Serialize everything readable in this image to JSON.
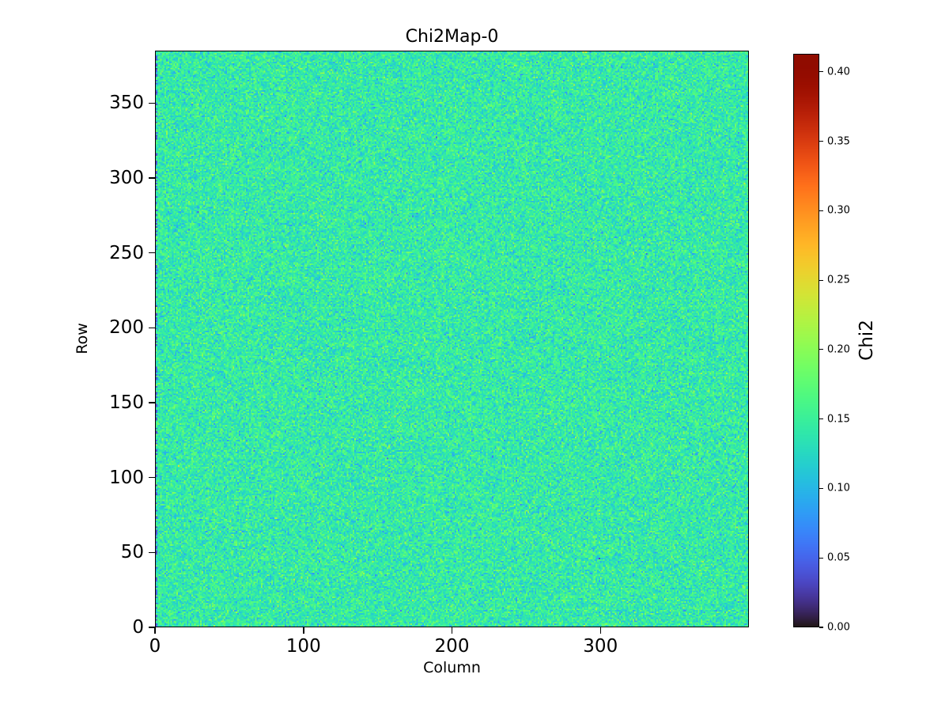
{
  "chart_data": {
    "type": "heatmap",
    "title": "Chi2Map-0",
    "xlabel": "Column",
    "ylabel": "Row",
    "colorbar_label": "Chi2",
    "xlim": [
      0,
      400
    ],
    "ylim": [
      0,
      385
    ],
    "x_ticks": [
      0,
      100,
      200,
      300
    ],
    "y_ticks": [
      0,
      50,
      100,
      150,
      200,
      250,
      300,
      350
    ],
    "colorbar_ticks": [
      0.0,
      0.05,
      0.1,
      0.15,
      0.2,
      0.25,
      0.3,
      0.35,
      0.4
    ],
    "value_min": 0.0,
    "value_max": 0.413,
    "colormap": "turbo",
    "grid_rows": 385,
    "grid_cols": 400,
    "legend_position": "right-colorbar",
    "grid": false,
    "noise": {
      "distribution": "gaussian",
      "mean": 0.143,
      "std": 0.023,
      "seed": 42,
      "left_edge_dark_fraction": 0.35
    }
  }
}
